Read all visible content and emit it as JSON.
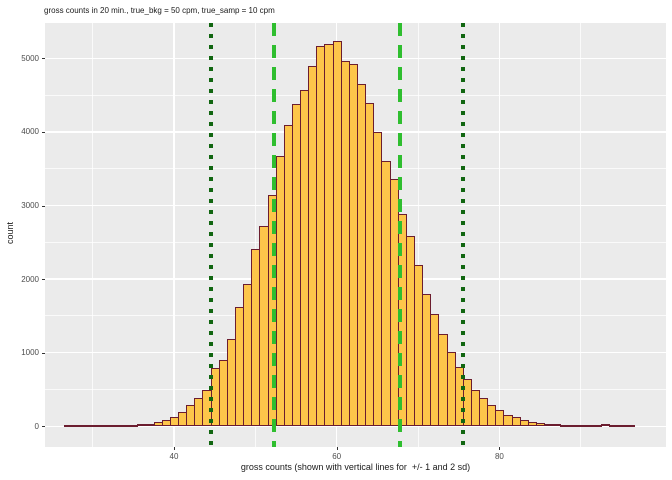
{
  "chart_data": {
    "type": "bar",
    "subtype": "histogram",
    "title": "gross counts in 20 min., true_bkg = 50 cpm, true_samp = 10 cpm",
    "xlabel": "gross counts (shown with vertical lines for  +/- 1 and 2 sd)",
    "ylabel": "count",
    "grid": "on",
    "legend": "none",
    "xlim": [
      24.1,
      100.5
    ],
    "ylim": [
      -280,
      5480
    ],
    "x_major_ticks": [
      40,
      60,
      80
    ],
    "x_minor_gridlines": [
      30,
      50,
      70,
      90
    ],
    "y_major_ticks": [
      0,
      1000,
      2000,
      3000,
      4000,
      5000
    ],
    "y_minor_gridlines": [
      500,
      1500,
      2500,
      3500,
      4500
    ],
    "binwidth": 1,
    "bin_centers_start": 27,
    "counts": [
      1,
      1,
      2,
      2,
      3,
      5,
      7,
      10,
      16,
      25,
      35,
      55,
      85,
      125,
      200,
      285,
      385,
      500,
      790,
      900,
      1190,
      1620,
      1935,
      2415,
      2720,
      3140,
      3680,
      4100,
      4380,
      4575,
      4900,
      5175,
      5200,
      5230,
      4970,
      4920,
      4650,
      4390,
      4000,
      3600,
      3355,
      2880,
      2580,
      2190,
      1800,
      1520,
      1250,
      1010,
      810,
      640,
      500,
      385,
      290,
      220,
      160,
      120,
      85,
      60,
      45,
      25,
      25,
      10,
      8,
      6,
      5,
      4,
      28,
      8,
      3,
      1
    ],
    "vlines": [
      {
        "x": 44.51,
        "style": "dotted",
        "color": "#116611"
      },
      {
        "x": 52.25,
        "style": "dashed",
        "color": "#2FBE2F"
      },
      {
        "x": 67.75,
        "style": "dashed",
        "color": "#2FBE2F"
      },
      {
        "x": 75.49,
        "style": "dotted",
        "color": "#116611"
      }
    ],
    "colors": {
      "bar_fill": "#FDC64A",
      "bar_stroke": "#6B1D2F",
      "panel_background": "#EBEBEB",
      "gridline": "#FFFFFF",
      "tick_label": "#4D4D4D",
      "text": "#1A1A1A"
    }
  }
}
